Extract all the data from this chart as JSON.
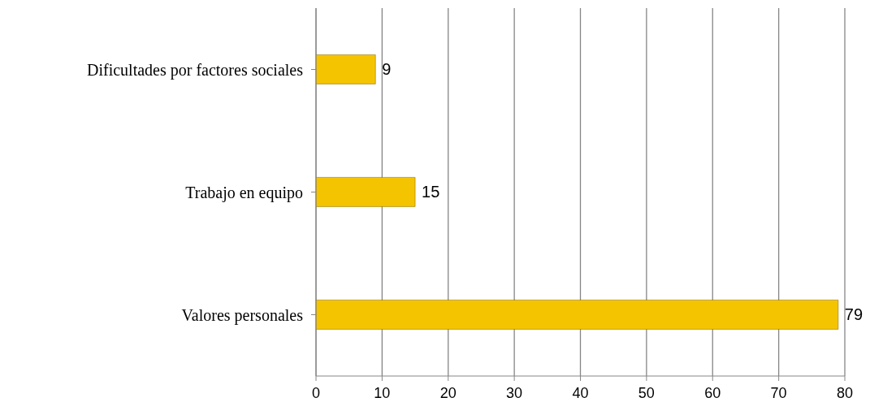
{
  "chart_data": {
    "type": "bar",
    "orientation": "horizontal",
    "categories": [
      "Dificultades por factores sociales",
      "Trabajo en equipo",
      "Valores personales"
    ],
    "values": [
      9,
      15,
      79
    ],
    "color": "#f5c400",
    "xlim": [
      0,
      80
    ],
    "xticks": [
      0,
      10,
      20,
      30,
      40,
      50,
      60,
      70,
      80
    ],
    "grid": "x",
    "data_labels": true
  }
}
